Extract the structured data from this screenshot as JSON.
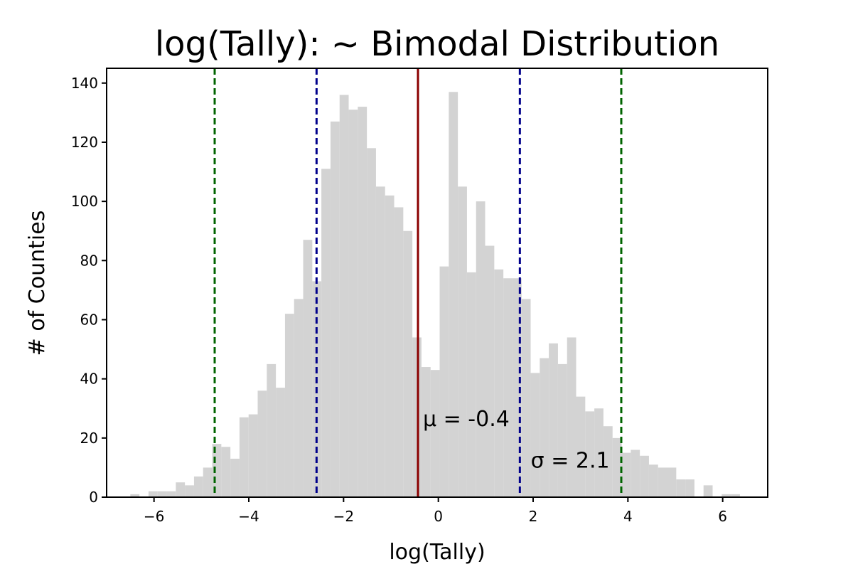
{
  "chart_data": {
    "type": "bar",
    "title": "log(Tally): ~ Bimodal Distribution",
    "xlabel": "log(Tally)",
    "ylabel": "# of Counties",
    "xlim": [
      -7,
      6.95
    ],
    "ylim": [
      0,
      145
    ],
    "grid": false,
    "legend": "none",
    "x_ticks": [
      {
        "value": -6,
        "label": "−6"
      },
      {
        "value": -4,
        "label": "−4"
      },
      {
        "value": -2,
        "label": "−2"
      },
      {
        "value": 0,
        "label": "0"
      },
      {
        "value": 2,
        "label": "2"
      },
      {
        "value": 4,
        "label": "4"
      },
      {
        "value": 6,
        "label": "6"
      }
    ],
    "y_ticks": [
      {
        "value": 0,
        "label": "0"
      },
      {
        "value": 20,
        "label": "20"
      },
      {
        "value": 40,
        "label": "40"
      },
      {
        "value": 60,
        "label": "60"
      },
      {
        "value": 80,
        "label": "80"
      },
      {
        "value": 100,
        "label": "100"
      },
      {
        "value": 120,
        "label": "120"
      },
      {
        "value": 140,
        "label": "140"
      }
    ],
    "bin_start": -6.5,
    "bin_width": 0.192,
    "counts": [
      1,
      0,
      2,
      2,
      2,
      5,
      4,
      7,
      10,
      18,
      17,
      13,
      27,
      28,
      36,
      45,
      37,
      62,
      67,
      87,
      73,
      111,
      127,
      136,
      131,
      132,
      118,
      105,
      102,
      98,
      90,
      54,
      44,
      43,
      78,
      137,
      105,
      76,
      100,
      85,
      77,
      74,
      74,
      67,
      42,
      47,
      52,
      45,
      54,
      34,
      29,
      30,
      24,
      20,
      15,
      16,
      14,
      11,
      10,
      10,
      6,
      6,
      0,
      4,
      0,
      1,
      1,
      0,
      0,
      0,
      1
    ],
    "hist_color": "#d3d3d3",
    "mean": {
      "value": -0.43,
      "label": "μ = -0.4",
      "color": "#8b0000"
    },
    "sigma_lines": [
      {
        "value": -2.57,
        "color": "#00008b"
      },
      {
        "value": 1.72,
        "color": "#00008b"
      },
      {
        "value": -4.72,
        "color": "#006400"
      },
      {
        "value": 3.86,
        "color": "#006400"
      }
    ],
    "sigma_label": {
      "label": "σ = 2.1",
      "x": 1.95,
      "y": 10
    }
  }
}
